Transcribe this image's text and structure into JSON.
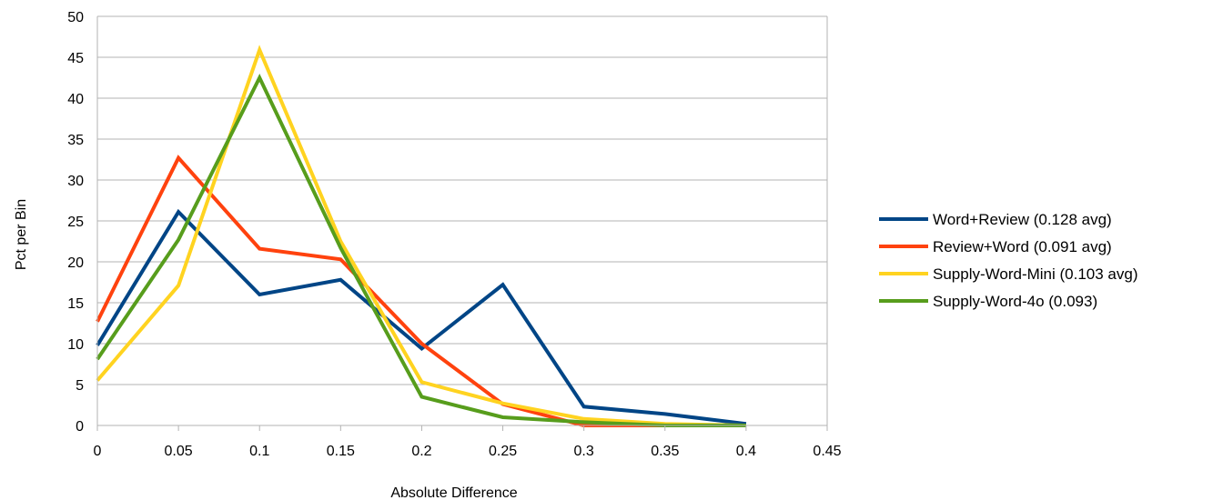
{
  "chart_data": {
    "type": "line",
    "title": "",
    "xlabel": "Absolute Difference",
    "ylabel": "Pct per Bin",
    "xlim": [
      0,
      0.45
    ],
    "ylim": [
      0,
      50
    ],
    "x_ticks": [
      "0",
      "0.05",
      "0.1",
      "0.15",
      "0.2",
      "0.25",
      "0.3",
      "0.35",
      "0.4",
      "0.45"
    ],
    "y_ticks": [
      "0",
      "5",
      "10",
      "15",
      "20",
      "25",
      "30",
      "35",
      "40",
      "45",
      "50"
    ],
    "grid": "horizontal",
    "legend_position": "right",
    "x": [
      0,
      0.05,
      0.1,
      0.15,
      0.2,
      0.25,
      0.3,
      0.35,
      0.4
    ],
    "series": [
      {
        "name": "Word+Review (0.128 avg)",
        "color": "#004586",
        "values": [
          9.8,
          26.1,
          16.0,
          17.8,
          9.4,
          17.2,
          2.3,
          1.4,
          0.2
        ]
      },
      {
        "name": "Review+Word (0.091 avg)",
        "color": "#ff420e",
        "values": [
          12.7,
          32.7,
          21.6,
          20.3,
          10.0,
          2.6,
          0.0,
          0.0,
          0.0
        ]
      },
      {
        "name": "Supply-Word-Mini (0.103 avg)",
        "color": "#ffd320",
        "values": [
          5.5,
          17.1,
          45.9,
          22.5,
          5.3,
          2.7,
          0.8,
          0.2,
          0.0
        ]
      },
      {
        "name": "Supply-Word-4o (0.093)",
        "color": "#579d1c",
        "values": [
          8.1,
          22.7,
          42.5,
          21.7,
          3.5,
          1.0,
          0.4,
          0.0,
          0.0
        ]
      }
    ]
  }
}
